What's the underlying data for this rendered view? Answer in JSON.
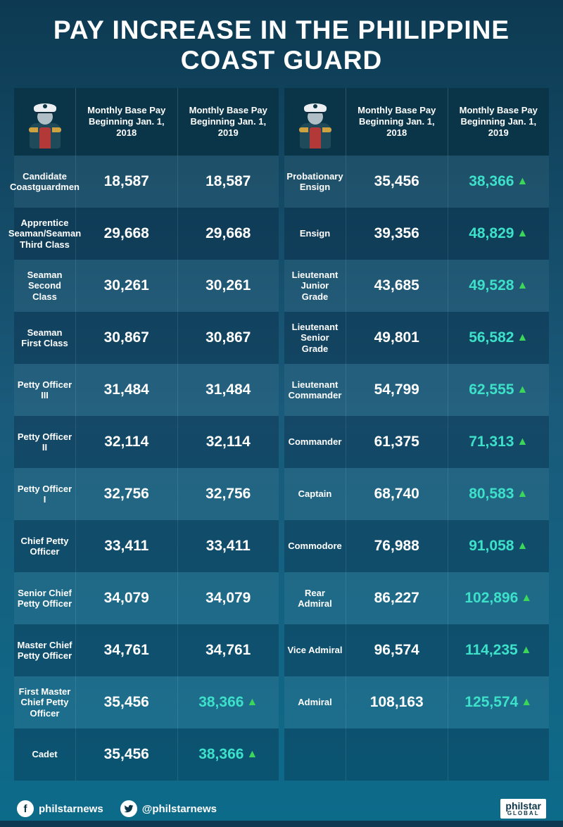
{
  "title": "PAY INCREASE IN THE PHILIPPINE COAST GUARD",
  "headers": {
    "pay2018": "Monthly Base Pay Beginning Jan. 1, 2018",
    "pay2019": "Monthly Base Pay Beginning Jan. 1, 2019"
  },
  "left_rows": [
    {
      "rank": "Candidate Coastguardmen",
      "v2018": "18,587",
      "v2019": "18,587",
      "inc": false
    },
    {
      "rank": "Apprentice Seaman/Seaman Third Class",
      "v2018": "29,668",
      "v2019": "29,668",
      "inc": false
    },
    {
      "rank": "Seaman Second Class",
      "v2018": "30,261",
      "v2019": "30,261",
      "inc": false
    },
    {
      "rank": "Seaman First Class",
      "v2018": "30,867",
      "v2019": "30,867",
      "inc": false
    },
    {
      "rank": "Petty Officer III",
      "v2018": "31,484",
      "v2019": "31,484",
      "inc": false
    },
    {
      "rank": "Petty Officer II",
      "v2018": "32,114",
      "v2019": "32,114",
      "inc": false
    },
    {
      "rank": "Petty Officer I",
      "v2018": "32,756",
      "v2019": "32,756",
      "inc": false
    },
    {
      "rank": "Chief Petty Officer",
      "v2018": "33,411",
      "v2019": "33,411",
      "inc": false
    },
    {
      "rank": "Senior Chief Petty Officer",
      "v2018": "34,079",
      "v2019": "34,079",
      "inc": false
    },
    {
      "rank": "Master Chief Petty Officer",
      "v2018": "34,761",
      "v2019": "34,761",
      "inc": false
    },
    {
      "rank": "First Master Chief Petty Officer",
      "v2018": "35,456",
      "v2019": "38,366",
      "inc": true
    },
    {
      "rank": "Cadet",
      "v2018": "35,456",
      "v2019": "38,366",
      "inc": true
    }
  ],
  "right_rows": [
    {
      "rank": "Probationary Ensign",
      "v2018": "35,456",
      "v2019": "38,366",
      "inc": true
    },
    {
      "rank": "Ensign",
      "v2018": "39,356",
      "v2019": "48,829",
      "inc": true
    },
    {
      "rank": "Lieutenant Junior Grade",
      "v2018": "43,685",
      "v2019": "49,528",
      "inc": true
    },
    {
      "rank": "Lieutenant Senior Grade",
      "v2018": "49,801",
      "v2019": "56,582",
      "inc": true
    },
    {
      "rank": "Lieutenant Commander",
      "v2018": "54,799",
      "v2019": "62,555",
      "inc": true
    },
    {
      "rank": "Commander",
      "v2018": "61,375",
      "v2019": "71,313",
      "inc": true
    },
    {
      "rank": "Captain",
      "v2018": "68,740",
      "v2019": "80,583",
      "inc": true
    },
    {
      "rank": "Commodore",
      "v2018": "76,988",
      "v2019": "91,058",
      "inc": true
    },
    {
      "rank": "Rear Admiral",
      "v2018": "86,227",
      "v2019": "102,896",
      "inc": true
    },
    {
      "rank": "Vice Admiral",
      "v2018": "96,574",
      "v2019": "114,235",
      "inc": true
    },
    {
      "rank": "Admiral",
      "v2018": "108,163",
      "v2019": "125,574",
      "inc": true
    }
  ],
  "social": {
    "fb_handle": "philstarnews",
    "tw_handle": "@philstarnews"
  },
  "brand": {
    "name": "philstar",
    "sub": "GLOBAL"
  },
  "colors": {
    "increase_text": "#3de0c8",
    "arrow": "#3cd65a",
    "bg_top": "#0d3a52",
    "bg_bottom": "#0d6b8a"
  }
}
